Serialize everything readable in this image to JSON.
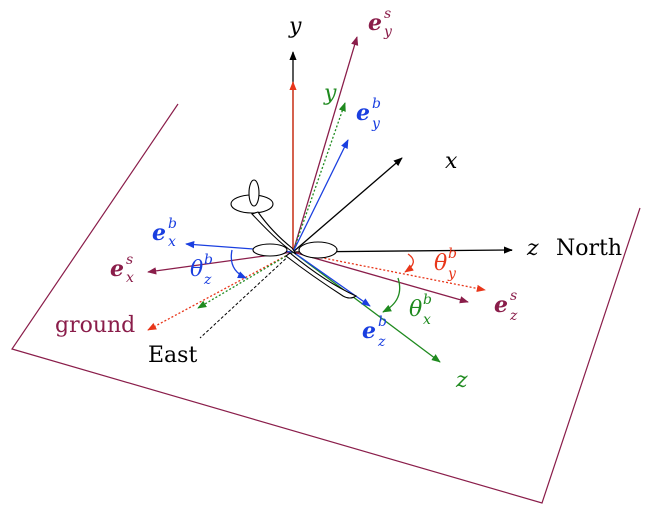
{
  "plane": {
    "label": "ground",
    "color": "#8a1d4a"
  },
  "directions": {
    "north": "North",
    "east": "East"
  },
  "axes": {
    "y_up": "y",
    "x_right": "x",
    "z_right": "z",
    "y_green": "y",
    "z_green": "z"
  },
  "vectors": {
    "e_y_s": {
      "base": "e",
      "sup": "s",
      "sub": "y"
    },
    "e_y_b": {
      "base": "e",
      "sup": "b",
      "sub": "y"
    },
    "e_x_b": {
      "base": "e",
      "sup": "b",
      "sub": "x"
    },
    "e_x_s": {
      "base": "e",
      "sup": "s",
      "sub": "x"
    },
    "e_z_b": {
      "base": "e",
      "sup": "b",
      "sub": "z"
    },
    "e_z_s": {
      "base": "e",
      "sup": "s",
      "sub": "z"
    }
  },
  "angles": {
    "theta_y": {
      "base": "θ",
      "sup": "b",
      "sub": "y"
    },
    "theta_z": {
      "base": "θ",
      "sup": "b",
      "sub": "z"
    },
    "theta_x": {
      "base": "θ",
      "sup": "b",
      "sub": "x"
    }
  },
  "colors": {
    "black": "#000000",
    "red": "#e8361a",
    "maroon": "#8a1d4a",
    "green": "#1f8a1f",
    "blue": "#1a3fe0"
  }
}
